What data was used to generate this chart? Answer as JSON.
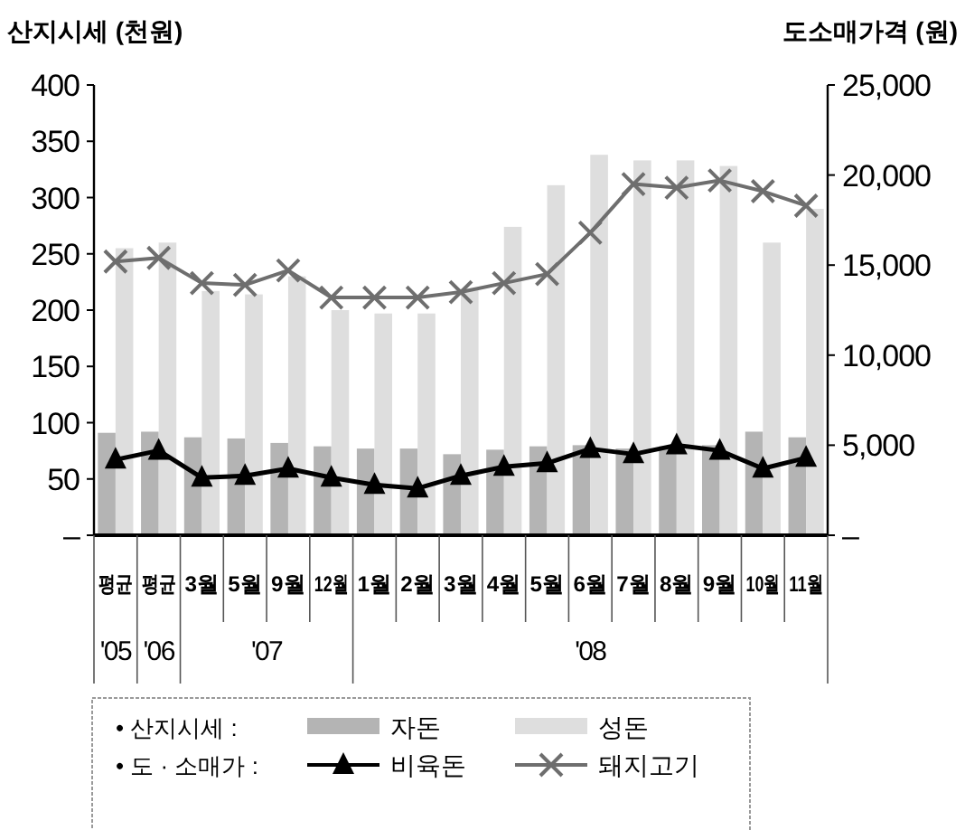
{
  "chart_data": {
    "type": "bar",
    "ylabel": "산지시세 (천원)",
    "y2label": "도소매가격 (원)",
    "categories": [
      "평균",
      "평균",
      "3월",
      "5월",
      "9월",
      "12월",
      "1월",
      "2월",
      "3월",
      "4월",
      "5월",
      "6월",
      "7월",
      "8월",
      "9월",
      "10월",
      "11월"
    ],
    "series": [
      {
        "name": "자돈",
        "color": "#b4b4b4",
        "values": [
          91,
          92,
          87,
          86,
          82,
          79,
          77,
          77,
          72,
          76,
          79,
          80,
          77,
          79,
          80,
          92,
          87
        ]
      },
      {
        "name": "성돈",
        "color": "#dedede",
        "values": [
          255,
          260,
          217,
          214,
          230,
          200,
          197,
          197,
          219,
          274,
          311,
          338,
          333,
          333,
          328,
          260,
          290
        ]
      },
      {
        "name": "비육돈",
        "type": "line",
        "axis": "y2",
        "color": "#000000",
        "marker": "triangle",
        "values": [
          4200,
          4700,
          3200,
          3300,
          3700,
          3200,
          2800,
          2600,
          3300,
          3800,
          4000,
          4800,
          4500,
          5000,
          4700,
          3700,
          4300
        ]
      },
      {
        "name": "돼지고기",
        "type": "line",
        "axis": "y2",
        "color": "#6e6e6e",
        "marker": "cross",
        "values": [
          15200,
          15400,
          14000,
          13900,
          14700,
          13200,
          13200,
          13200,
          13500,
          14000,
          14500,
          16800,
          19500,
          19300,
          19700,
          19100,
          18300
        ]
      }
    ],
    "ylim": [
      0,
      400
    ],
    "yticks": [
      {
        "value": 0,
        "label": "–"
      },
      50,
      100,
      150,
      200,
      250,
      300,
      350,
      400
    ],
    "y2lim": [
      0,
      25000
    ],
    "y2ticks": [
      {
        "value": 0,
        "label": "–"
      },
      {
        "value": 5000,
        "label": "5,000"
      },
      {
        "value": 10000,
        "label": "10,000"
      },
      {
        "value": 15000,
        "label": "15,000"
      },
      {
        "value": 20000,
        "label": "20,000"
      },
      {
        "value": 25000,
        "label": "25,000"
      }
    ],
    "annotations": [
      "'05",
      "'06",
      "'07",
      "'08",
      "• 산지시세 :",
      "• 도 · 소매가 :"
    ],
    "legend": "bottom",
    "grid": false
  }
}
